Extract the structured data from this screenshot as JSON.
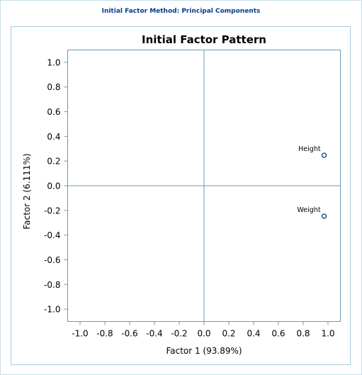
{
  "header": {
    "title": "Initial Factor Method: Principal Components"
  },
  "chart_data": {
    "type": "scatter",
    "title": "Initial Factor Pattern",
    "xlabel": "Factor 1 (93.89%)",
    "ylabel": "Factor 2 (6.111%)",
    "xlim": [
      -1.1,
      1.1
    ],
    "ylim": [
      -1.1,
      1.1
    ],
    "xticks": [
      -1.0,
      -0.8,
      -0.6,
      -0.4,
      -0.2,
      0.0,
      0.2,
      0.4,
      0.6,
      0.8,
      1.0
    ],
    "yticks": [
      -1.0,
      -0.8,
      -0.6,
      -0.4,
      -0.2,
      0.0,
      0.2,
      0.4,
      0.6,
      0.8,
      1.0
    ],
    "xtick_labels": [
      "-1.0",
      "-0.8",
      "-0.6",
      "-0.4",
      "-0.2",
      "0.0",
      "0.2",
      "0.4",
      "0.6",
      "0.8",
      "1.0"
    ],
    "ytick_labels": [
      "-1.0",
      "-0.8",
      "-0.6",
      "-0.4",
      "-0.2",
      "0.0",
      "0.2",
      "0.4",
      "0.6",
      "0.8",
      "1.0"
    ],
    "points": [
      {
        "label": "Height",
        "x": 0.969,
        "y": 0.247
      },
      {
        "label": "Weight",
        "x": 0.969,
        "y": -0.247
      }
    ],
    "reference_lines": {
      "x": 0,
      "y": 0
    },
    "grid": false,
    "colors": {
      "frame": "#6b9bb3",
      "marker": "#0b3b8c",
      "text": "#000000",
      "header": "#0b3b8c"
    }
  }
}
